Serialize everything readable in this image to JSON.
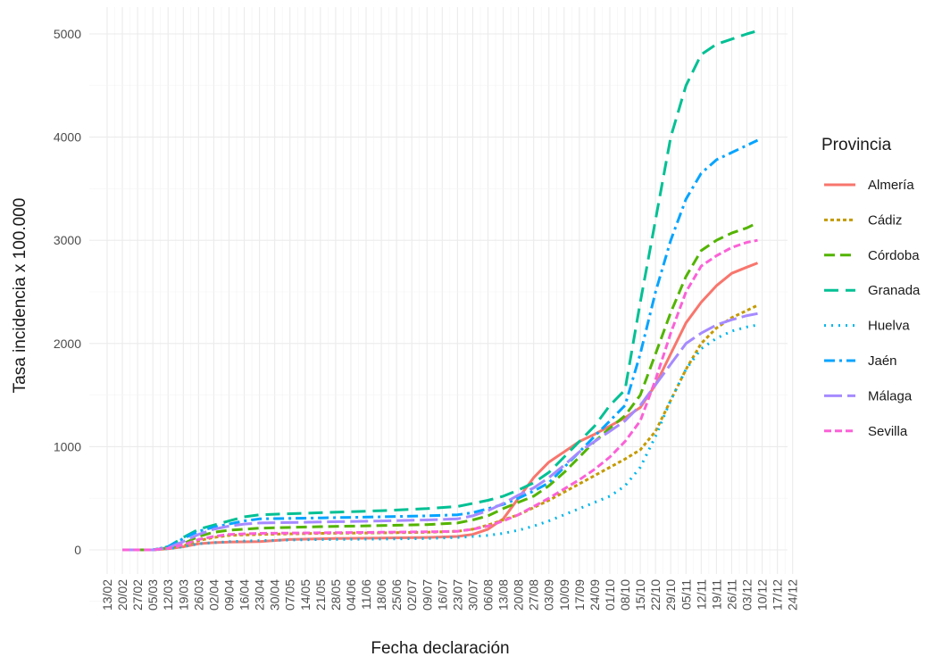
{
  "chart_data": {
    "type": "line",
    "xlabel": "Fecha declaración",
    "ylabel": "Tasa incidencia x 100.000",
    "x_ticks": [
      "13/02",
      "20/02",
      "27/02",
      "05/03",
      "12/03",
      "19/03",
      "26/03",
      "02/04",
      "09/04",
      "16/04",
      "23/04",
      "30/04",
      "07/05",
      "14/05",
      "21/05",
      "28/05",
      "04/06",
      "11/06",
      "18/06",
      "25/06",
      "02/07",
      "09/07",
      "16/07",
      "23/07",
      "30/07",
      "06/08",
      "13/08",
      "20/08",
      "27/08",
      "03/09",
      "10/09",
      "17/09",
      "24/09",
      "01/10",
      "08/10",
      "15/10",
      "22/10",
      "29/10",
      "05/11",
      "12/11",
      "19/11",
      "26/11",
      "03/12",
      "10/12",
      "17/12",
      "24/12"
    ],
    "y_ticks": [
      0,
      1000,
      2000,
      3000,
      4000,
      5000
    ],
    "ylim": [
      -250,
      5200
    ],
    "grid": true,
    "legend_title": "Provincia",
    "legend_position": "right",
    "x_unit": "week index from 13/02",
    "series": [
      {
        "name": "Almería",
        "color": "#F8766D",
        "dash": "",
        "points": [
          [
            1,
            0
          ],
          [
            3,
            0
          ],
          [
            4,
            10
          ],
          [
            5,
            30
          ],
          [
            6,
            60
          ],
          [
            7,
            70
          ],
          [
            8,
            75
          ],
          [
            10,
            80
          ],
          [
            12,
            100
          ],
          [
            15,
            110
          ],
          [
            18,
            115
          ],
          [
            21,
            120
          ],
          [
            23,
            130
          ],
          [
            24,
            150
          ],
          [
            25,
            200
          ],
          [
            26,
            300
          ],
          [
            27,
            500
          ],
          [
            28,
            700
          ],
          [
            29,
            850
          ],
          [
            30,
            950
          ],
          [
            31,
            1050
          ],
          [
            32,
            1120
          ],
          [
            33,
            1200
          ],
          [
            34,
            1280
          ],
          [
            35,
            1380
          ],
          [
            36,
            1600
          ],
          [
            37,
            1900
          ],
          [
            38,
            2200
          ],
          [
            39,
            2400
          ],
          [
            40,
            2560
          ],
          [
            41,
            2680
          ],
          [
            42,
            2740
          ],
          [
            42.7,
            2780
          ]
        ]
      },
      {
        "name": "Cádiz",
        "color": "#C49A00",
        "dash": "4,3",
        "points": [
          [
            1,
            0
          ],
          [
            3,
            0
          ],
          [
            4,
            15
          ],
          [
            5,
            40
          ],
          [
            6,
            90
          ],
          [
            7,
            120
          ],
          [
            8,
            140
          ],
          [
            10,
            150
          ],
          [
            14,
            160
          ],
          [
            18,
            165
          ],
          [
            21,
            170
          ],
          [
            23,
            180
          ],
          [
            24,
            200
          ],
          [
            25,
            240
          ],
          [
            26,
            290
          ],
          [
            27,
            340
          ],
          [
            28,
            410
          ],
          [
            29,
            480
          ],
          [
            30,
            560
          ],
          [
            31,
            640
          ],
          [
            32,
            720
          ],
          [
            33,
            800
          ],
          [
            34,
            880
          ],
          [
            35,
            970
          ],
          [
            36,
            1150
          ],
          [
            37,
            1450
          ],
          [
            38,
            1750
          ],
          [
            39,
            2000
          ],
          [
            40,
            2150
          ],
          [
            41,
            2250
          ],
          [
            42,
            2320
          ],
          [
            42.7,
            2370
          ]
        ]
      },
      {
        "name": "Córdoba",
        "color": "#53B400",
        "dash": "12,6",
        "points": [
          [
            1,
            0
          ],
          [
            3,
            0
          ],
          [
            4,
            20
          ],
          [
            5,
            60
          ],
          [
            6,
            130
          ],
          [
            7,
            170
          ],
          [
            8,
            190
          ],
          [
            10,
            210
          ],
          [
            14,
            225
          ],
          [
            18,
            235
          ],
          [
            21,
            245
          ],
          [
            23,
            260
          ],
          [
            24,
            290
          ],
          [
            25,
            330
          ],
          [
            26,
            400
          ],
          [
            27,
            460
          ],
          [
            28,
            520
          ],
          [
            29,
            620
          ],
          [
            30,
            750
          ],
          [
            31,
            900
          ],
          [
            32,
            1050
          ],
          [
            33,
            1180
          ],
          [
            34,
            1300
          ],
          [
            35,
            1500
          ],
          [
            36,
            1900
          ],
          [
            37,
            2300
          ],
          [
            38,
            2650
          ],
          [
            39,
            2900
          ],
          [
            40,
            3000
          ],
          [
            41,
            3070
          ],
          [
            42,
            3120
          ],
          [
            42.7,
            3170
          ]
        ]
      },
      {
        "name": "Granada",
        "color": "#00C094",
        "dash": "16,8",
        "points": [
          [
            1,
            0
          ],
          [
            3,
            0
          ],
          [
            4,
            30
          ],
          [
            5,
            120
          ],
          [
            6,
            200
          ],
          [
            7,
            240
          ],
          [
            8,
            280
          ],
          [
            9,
            320
          ],
          [
            10,
            340
          ],
          [
            14,
            360
          ],
          [
            18,
            380
          ],
          [
            21,
            400
          ],
          [
            23,
            420
          ],
          [
            24,
            450
          ],
          [
            25,
            480
          ],
          [
            26,
            520
          ],
          [
            27,
            580
          ],
          [
            28,
            650
          ],
          [
            29,
            750
          ],
          [
            30,
            900
          ],
          [
            31,
            1050
          ],
          [
            32,
            1200
          ],
          [
            33,
            1400
          ],
          [
            34,
            1550
          ],
          [
            35,
            2400
          ],
          [
            36,
            3200
          ],
          [
            37,
            4000
          ],
          [
            38,
            4500
          ],
          [
            39,
            4800
          ],
          [
            40,
            4900
          ],
          [
            41,
            4950
          ],
          [
            42,
            5000
          ],
          [
            42.7,
            5030
          ]
        ]
      },
      {
        "name": "Huelva",
        "color": "#00B6EB",
        "dash": "2,6",
        "points": [
          [
            1,
            0
          ],
          [
            3,
            0
          ],
          [
            4,
            10
          ],
          [
            5,
            30
          ],
          [
            6,
            60
          ],
          [
            8,
            80
          ],
          [
            10,
            90
          ],
          [
            14,
            100
          ],
          [
            18,
            105
          ],
          [
            21,
            110
          ],
          [
            23,
            120
          ],
          [
            24,
            130
          ],
          [
            25,
            140
          ],
          [
            26,
            160
          ],
          [
            27,
            190
          ],
          [
            28,
            230
          ],
          [
            29,
            280
          ],
          [
            30,
            340
          ],
          [
            31,
            400
          ],
          [
            32,
            460
          ],
          [
            33,
            520
          ],
          [
            34,
            620
          ],
          [
            35,
            800
          ],
          [
            36,
            1100
          ],
          [
            37,
            1450
          ],
          [
            38,
            1750
          ],
          [
            39,
            1950
          ],
          [
            40,
            2050
          ],
          [
            41,
            2120
          ],
          [
            42,
            2160
          ],
          [
            42.7,
            2180
          ]
        ]
      },
      {
        "name": "Jaén",
        "color": "#06A4FF",
        "dash": "12,5,3,5",
        "points": [
          [
            1,
            0
          ],
          [
            3,
            0
          ],
          [
            4,
            30
          ],
          [
            5,
            110
          ],
          [
            6,
            180
          ],
          [
            7,
            220
          ],
          [
            8,
            250
          ],
          [
            9,
            280
          ],
          [
            10,
            300
          ],
          [
            14,
            310
          ],
          [
            18,
            320
          ],
          [
            21,
            330
          ],
          [
            23,
            340
          ],
          [
            24,
            360
          ],
          [
            25,
            400
          ],
          [
            26,
            440
          ],
          [
            27,
            500
          ],
          [
            28,
            570
          ],
          [
            29,
            650
          ],
          [
            30,
            800
          ],
          [
            31,
            950
          ],
          [
            32,
            1100
          ],
          [
            33,
            1250
          ],
          [
            34,
            1400
          ],
          [
            35,
            1900
          ],
          [
            36,
            2500
          ],
          [
            37,
            3000
          ],
          [
            38,
            3400
          ],
          [
            39,
            3650
          ],
          [
            40,
            3780
          ],
          [
            41,
            3850
          ],
          [
            42,
            3920
          ],
          [
            42.7,
            3970
          ]
        ]
      },
      {
        "name": "Málaga",
        "color": "#A58AFF",
        "dash": "20,6",
        "points": [
          [
            1,
            0
          ],
          [
            3,
            0
          ],
          [
            4,
            20
          ],
          [
            5,
            80
          ],
          [
            6,
            150
          ],
          [
            7,
            200
          ],
          [
            8,
            230
          ],
          [
            9,
            250
          ],
          [
            10,
            260
          ],
          [
            14,
            270
          ],
          [
            18,
            280
          ],
          [
            21,
            290
          ],
          [
            23,
            300
          ],
          [
            24,
            330
          ],
          [
            25,
            380
          ],
          [
            26,
            450
          ],
          [
            27,
            530
          ],
          [
            28,
            600
          ],
          [
            29,
            700
          ],
          [
            30,
            820
          ],
          [
            31,
            950
          ],
          [
            32,
            1050
          ],
          [
            33,
            1150
          ],
          [
            34,
            1250
          ],
          [
            35,
            1400
          ],
          [
            36,
            1600
          ],
          [
            37,
            1800
          ],
          [
            38,
            2000
          ],
          [
            39,
            2100
          ],
          [
            40,
            2180
          ],
          [
            41,
            2230
          ],
          [
            42,
            2270
          ],
          [
            42.7,
            2290
          ]
        ]
      },
      {
        "name": "Sevilla",
        "color": "#FB61D7",
        "dash": "8,4",
        "points": [
          [
            1,
            0
          ],
          [
            3,
            0
          ],
          [
            4,
            15
          ],
          [
            5,
            50
          ],
          [
            6,
            100
          ],
          [
            7,
            130
          ],
          [
            8,
            150
          ],
          [
            10,
            160
          ],
          [
            14,
            165
          ],
          [
            18,
            170
          ],
          [
            21,
            175
          ],
          [
            23,
            180
          ],
          [
            24,
            200
          ],
          [
            25,
            230
          ],
          [
            26,
            280
          ],
          [
            27,
            340
          ],
          [
            28,
            420
          ],
          [
            29,
            500
          ],
          [
            30,
            590
          ],
          [
            31,
            680
          ],
          [
            32,
            780
          ],
          [
            33,
            900
          ],
          [
            34,
            1050
          ],
          [
            35,
            1250
          ],
          [
            36,
            1650
          ],
          [
            37,
            2100
          ],
          [
            38,
            2500
          ],
          [
            39,
            2750
          ],
          [
            40,
            2850
          ],
          [
            41,
            2930
          ],
          [
            42,
            2980
          ],
          [
            42.7,
            3000
          ]
        ]
      }
    ]
  }
}
